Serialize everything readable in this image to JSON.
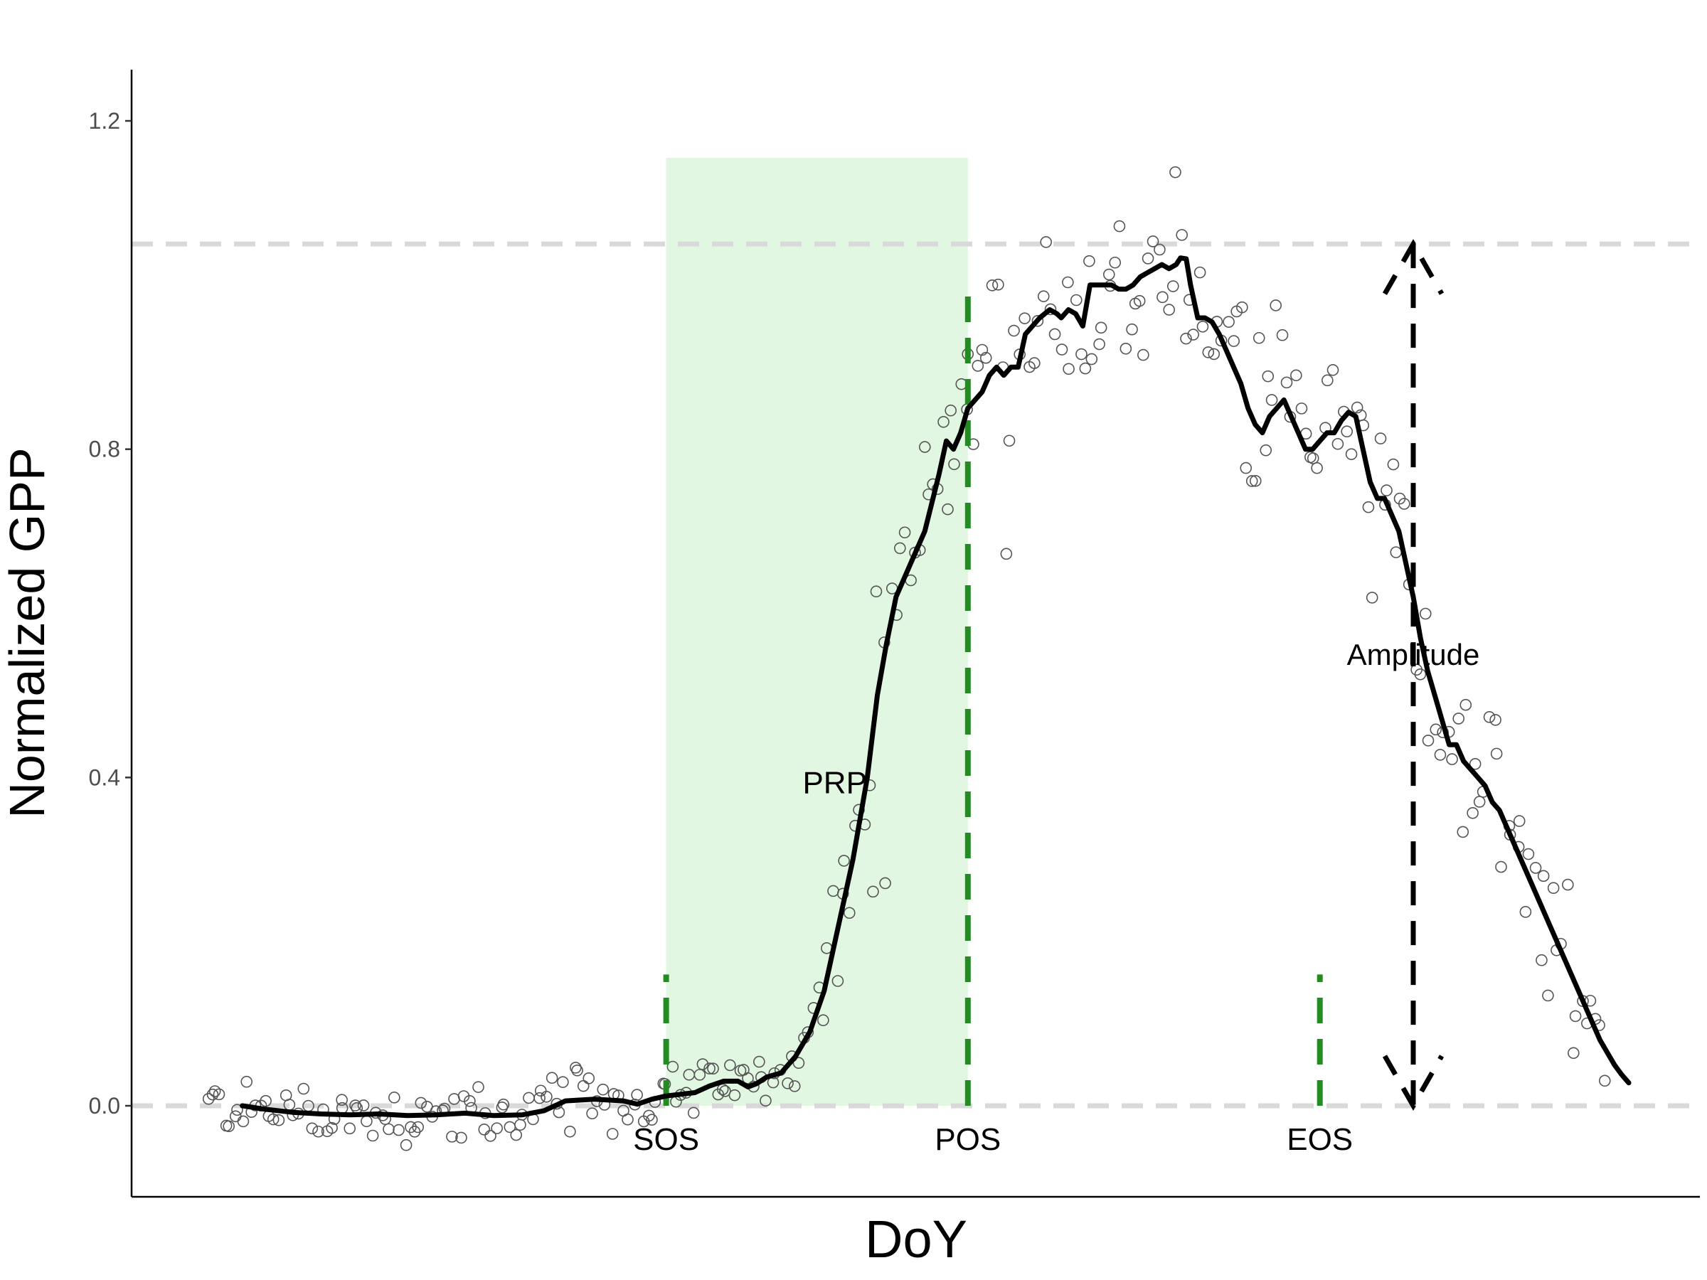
{
  "chart_data": {
    "type": "scatter",
    "title": "",
    "xlabel": "DoY",
    "ylabel": "Normalized GPP",
    "x_ticks_shown": false,
    "xlim": [
      0,
      100
    ],
    "ylim": [
      -0.11,
      1.26
    ],
    "y_ticks": [
      0.0,
      0.4,
      0.8,
      1.2
    ],
    "y_tick_labels": [
      "0.0",
      "0.4",
      "0.8",
      "1.2"
    ],
    "grid": false,
    "reference_lines": [
      {
        "y": 0.0,
        "style": "dashed",
        "color": "#d9d9d9"
      },
      {
        "y": 1.05,
        "style": "dashed",
        "color": "#d9d9d9"
      }
    ],
    "phases": [
      {
        "label": "SOS",
        "x": 33.0,
        "y_top": 0.16,
        "color": "#228B22"
      },
      {
        "label": "POS",
        "x": 54.0,
        "y_top": 1.0,
        "color": "#228B22"
      },
      {
        "label": "EOS",
        "x": 78.5,
        "y_top": 0.16,
        "color": "#228B22"
      }
    ],
    "shaded_region": {
      "label": "PRP",
      "x_start": 33.0,
      "x_end": 54.0,
      "y_top": 1.155,
      "color": "#e2f7e2"
    },
    "amplitude_annotation": {
      "label": "Amplitude",
      "x": 85.0,
      "y_from": 0.0,
      "y_to": 1.05
    },
    "smoothed_series": {
      "name": "",
      "color": "#000000",
      "points": [
        [
          3.5,
          0.0
        ],
        [
          5,
          -0.004
        ],
        [
          7,
          -0.008
        ],
        [
          9,
          -0.01
        ],
        [
          11,
          -0.011
        ],
        [
          13,
          -0.01
        ],
        [
          15,
          -0.012
        ],
        [
          17,
          -0.011
        ],
        [
          19,
          -0.009
        ],
        [
          21,
          -0.012
        ],
        [
          23,
          -0.011
        ],
        [
          24.5,
          -0.006
        ],
        [
          26,
          0.006
        ],
        [
          28,
          0.008
        ],
        [
          30,
          0.006
        ],
        [
          31,
          0.002
        ],
        [
          32,
          0.008
        ],
        [
          33,
          0.012
        ],
        [
          34,
          0.014
        ],
        [
          35,
          0.016
        ],
        [
          35.5,
          0.02
        ],
        [
          36,
          0.024
        ],
        [
          37,
          0.03
        ],
        [
          38,
          0.03
        ],
        [
          38.7,
          0.023
        ],
        [
          39.3,
          0.027
        ],
        [
          40,
          0.035
        ],
        [
          41,
          0.04
        ],
        [
          42,
          0.06
        ],
        [
          43,
          0.09
        ],
        [
          44,
          0.14
        ],
        [
          45,
          0.22
        ],
        [
          46,
          0.3
        ],
        [
          47,
          0.4
        ],
        [
          47.7,
          0.5
        ],
        [
          48.3,
          0.56
        ],
        [
          49,
          0.62
        ],
        [
          50,
          0.66
        ],
        [
          51,
          0.7
        ],
        [
          52,
          0.77
        ],
        [
          52.5,
          0.81
        ],
        [
          53,
          0.8
        ],
        [
          53.5,
          0.82
        ],
        [
          54,
          0.85
        ],
        [
          55,
          0.87
        ],
        [
          55.5,
          0.89
        ],
        [
          56,
          0.9
        ],
        [
          56.5,
          0.89
        ],
        [
          57,
          0.9
        ],
        [
          57.5,
          0.9
        ],
        [
          58,
          0.94
        ],
        [
          58.5,
          0.95
        ],
        [
          59,
          0.96
        ],
        [
          59.7,
          0.97
        ],
        [
          60.2,
          0.965
        ],
        [
          60.5,
          0.96
        ],
        [
          61,
          0.97
        ],
        [
          61.5,
          0.965
        ],
        [
          62,
          0.95
        ],
        [
          62.5,
          1.0
        ],
        [
          63,
          1.0
        ],
        [
          63.5,
          1.0
        ],
        [
          64,
          1.0
        ],
        [
          64.5,
          0.995
        ],
        [
          65,
          0.995
        ],
        [
          65.5,
          1.0
        ],
        [
          66,
          1.01
        ],
        [
          66.5,
          1.015
        ],
        [
          67,
          1.02
        ],
        [
          67.5,
          1.025
        ],
        [
          68,
          1.02
        ],
        [
          68.5,
          1.025
        ],
        [
          68.8,
          1.033
        ],
        [
          69.2,
          1.032
        ],
        [
          69.5,
          1.0
        ],
        [
          70,
          0.96
        ],
        [
          70.5,
          0.96
        ],
        [
          71,
          0.955
        ],
        [
          71.5,
          0.94
        ],
        [
          72,
          0.92
        ],
        [
          72.5,
          0.9
        ],
        [
          73,
          0.88
        ],
        [
          73.5,
          0.85
        ],
        [
          74,
          0.83
        ],
        [
          74.5,
          0.82
        ],
        [
          75,
          0.84
        ],
        [
          75.5,
          0.85
        ],
        [
          76,
          0.86
        ],
        [
          76.5,
          0.84
        ],
        [
          77,
          0.82
        ],
        [
          77.5,
          0.8
        ],
        [
          78,
          0.8
        ],
        [
          78.5,
          0.81
        ],
        [
          79,
          0.82
        ],
        [
          79.5,
          0.82
        ],
        [
          80,
          0.835
        ],
        [
          80.5,
          0.845
        ],
        [
          81,
          0.84
        ],
        [
          81.5,
          0.8
        ],
        [
          82,
          0.76
        ],
        [
          82.5,
          0.74
        ],
        [
          83,
          0.74
        ],
        [
          83.5,
          0.72
        ],
        [
          84,
          0.7
        ],
        [
          84.5,
          0.66
        ],
        [
          85,
          0.62
        ],
        [
          85.5,
          0.57
        ],
        [
          86,
          0.53
        ],
        [
          86.5,
          0.5
        ],
        [
          87,
          0.47
        ],
        [
          87.5,
          0.44
        ],
        [
          88,
          0.44
        ],
        [
          88.5,
          0.42
        ],
        [
          89,
          0.41
        ],
        [
          89.5,
          0.4
        ],
        [
          90,
          0.39
        ],
        [
          90.5,
          0.37
        ],
        [
          91,
          0.36
        ],
        [
          91.5,
          0.34
        ],
        [
          92,
          0.32
        ],
        [
          92.5,
          0.3
        ],
        [
          93,
          0.28
        ],
        [
          93.5,
          0.26
        ],
        [
          94,
          0.24
        ],
        [
          94.5,
          0.22
        ],
        [
          95,
          0.2
        ],
        [
          95.5,
          0.18
        ],
        [
          96,
          0.16
        ],
        [
          96.5,
          0.14
        ],
        [
          97,
          0.12
        ],
        [
          97.5,
          0.1
        ],
        [
          98,
          0.08
        ],
        [
          98.5,
          0.065
        ],
        [
          99,
          0.05
        ],
        [
          99.5,
          0.038
        ],
        [
          100,
          0.028
        ]
      ]
    },
    "scatter_series": {
      "name": "",
      "marker": "open-circle",
      "color": "#555555",
      "density_note": "scattered observations around smoothed curve"
    }
  }
}
